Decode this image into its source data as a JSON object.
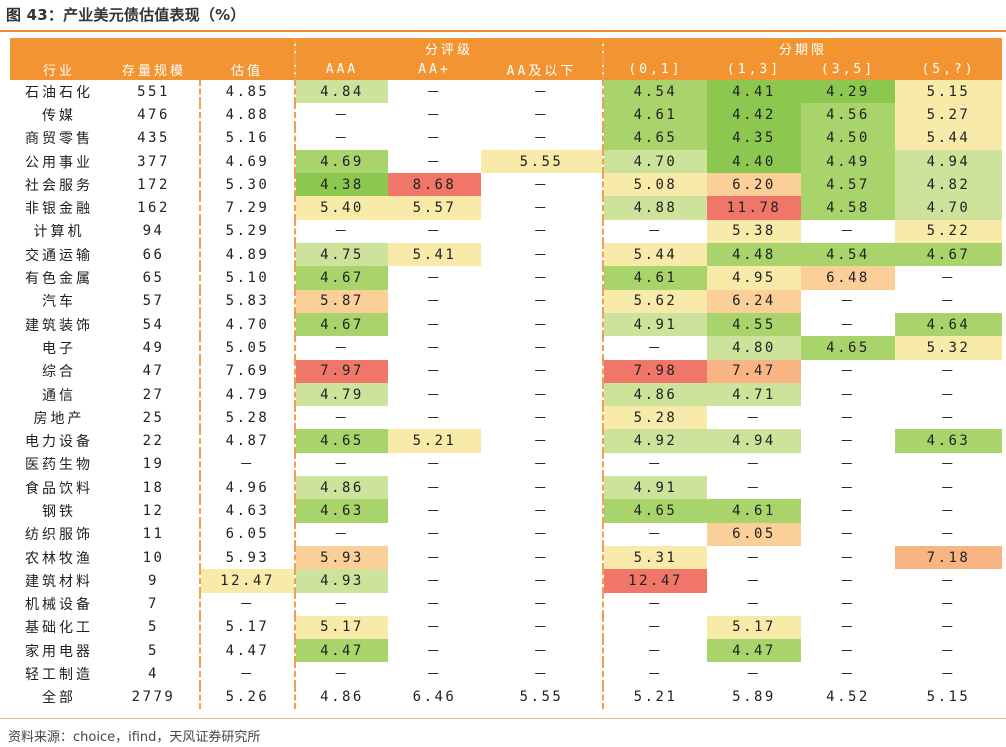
{
  "title": "图 43：产业美元债估值表现（%）",
  "source": "资料来源：choice，ifind，天风证券研究所",
  "header": {
    "group_rating": "分评级",
    "group_term": "分期限",
    "industry": "行业",
    "count": "存量规模",
    "valuation": "估值",
    "ratings": [
      "AAA",
      "AA+",
      "AA及以下"
    ],
    "terms": [
      "(0,1]",
      "(1,3]",
      "(3,5]",
      "(5,?)"
    ]
  },
  "colors": {
    "header_bg": "#f29432",
    "green_dark": "#8cc850",
    "green": "#a9d36b",
    "green_light": "#cde29a",
    "yellow": "#f8ebaa",
    "orange_light": "#fbcf98",
    "orange": "#f8b583",
    "red": "#f0766a"
  },
  "rows": [
    {
      "industry": "石油石化",
      "count": "551",
      "valuation": "4.85",
      "aaa": "4.84",
      "aap": "－",
      "aa": "－",
      "t1": "4.54",
      "t2": "4.41",
      "t3": "4.29",
      "t4": "5.15"
    },
    {
      "industry": "传媒",
      "count": "476",
      "valuation": "4.88",
      "aaa": "－",
      "aap": "－",
      "aa": "－",
      "t1": "4.61",
      "t2": "4.42",
      "t3": "4.56",
      "t4": "5.27"
    },
    {
      "industry": "商贸零售",
      "count": "435",
      "valuation": "5.16",
      "aaa": "－",
      "aap": "－",
      "aa": "－",
      "t1": "4.65",
      "t2": "4.35",
      "t3": "4.50",
      "t4": "5.44"
    },
    {
      "industry": "公用事业",
      "count": "377",
      "valuation": "4.69",
      "aaa": "4.69",
      "aap": "－",
      "aa": "5.55",
      "t1": "4.70",
      "t2": "4.40",
      "t3": "4.49",
      "t4": "4.94"
    },
    {
      "industry": "社会服务",
      "count": "172",
      "valuation": "5.30",
      "aaa": "4.38",
      "aap": "8.68",
      "aa": "－",
      "t1": "5.08",
      "t2": "6.20",
      "t3": "4.57",
      "t4": "4.82"
    },
    {
      "industry": "非银金融",
      "count": "162",
      "valuation": "7.29",
      "aaa": "5.40",
      "aap": "5.57",
      "aa": "－",
      "t1": "4.88",
      "t2": "11.78",
      "t3": "4.58",
      "t4": "4.70"
    },
    {
      "industry": "计算机",
      "count": "94",
      "valuation": "5.29",
      "aaa": "－",
      "aap": "－",
      "aa": "－",
      "t1": "－",
      "t2": "5.38",
      "t3": "－",
      "t4": "5.22"
    },
    {
      "industry": "交通运输",
      "count": "66",
      "valuation": "4.89",
      "aaa": "4.75",
      "aap": "5.41",
      "aa": "－",
      "t1": "5.44",
      "t2": "4.48",
      "t3": "4.54",
      "t4": "4.67"
    },
    {
      "industry": "有色金属",
      "count": "65",
      "valuation": "5.10",
      "aaa": "4.67",
      "aap": "－",
      "aa": "－",
      "t1": "4.61",
      "t2": "4.95",
      "t3": "6.48",
      "t4": "－"
    },
    {
      "industry": "汽车",
      "count": "57",
      "valuation": "5.83",
      "aaa": "5.87",
      "aap": "－",
      "aa": "－",
      "t1": "5.62",
      "t2": "6.24",
      "t3": "－",
      "t4": "－"
    },
    {
      "industry": "建筑装饰",
      "count": "54",
      "valuation": "4.70",
      "aaa": "4.67",
      "aap": "－",
      "aa": "－",
      "t1": "4.91",
      "t2": "4.55",
      "t3": "－",
      "t4": "4.64"
    },
    {
      "industry": "电子",
      "count": "49",
      "valuation": "5.05",
      "aaa": "－",
      "aap": "－",
      "aa": "－",
      "t1": "－",
      "t2": "4.80",
      "t3": "4.65",
      "t4": "5.32"
    },
    {
      "industry": "综合",
      "count": "47",
      "valuation": "7.69",
      "aaa": "7.97",
      "aap": "－",
      "aa": "－",
      "t1": "7.98",
      "t2": "7.47",
      "t3": "－",
      "t4": "－"
    },
    {
      "industry": "通信",
      "count": "27",
      "valuation": "4.79",
      "aaa": "4.79",
      "aap": "－",
      "aa": "－",
      "t1": "4.86",
      "t2": "4.71",
      "t3": "－",
      "t4": "－"
    },
    {
      "industry": "房地产",
      "count": "25",
      "valuation": "5.28",
      "aaa": "－",
      "aap": "－",
      "aa": "－",
      "t1": "5.28",
      "t2": "－",
      "t3": "－",
      "t4": "－"
    },
    {
      "industry": "电力设备",
      "count": "22",
      "valuation": "4.87",
      "aaa": "4.65",
      "aap": "5.21",
      "aa": "－",
      "t1": "4.92",
      "t2": "4.94",
      "t3": "－",
      "t4": "4.63"
    },
    {
      "industry": "医药生物",
      "count": "19",
      "valuation": "－",
      "aaa": "－",
      "aap": "－",
      "aa": "－",
      "t1": "－",
      "t2": "－",
      "t3": "－",
      "t4": "－"
    },
    {
      "industry": "食品饮料",
      "count": "18",
      "valuation": "4.96",
      "aaa": "4.86",
      "aap": "－",
      "aa": "－",
      "t1": "4.91",
      "t2": "－",
      "t3": "－",
      "t4": "－"
    },
    {
      "industry": "钢铁",
      "count": "12",
      "valuation": "4.63",
      "aaa": "4.63",
      "aap": "－",
      "aa": "－",
      "t1": "4.65",
      "t2": "4.61",
      "t3": "－",
      "t4": "－"
    },
    {
      "industry": "纺织服饰",
      "count": "11",
      "valuation": "6.05",
      "aaa": "－",
      "aap": "－",
      "aa": "－",
      "t1": "－",
      "t2": "6.05",
      "t3": "－",
      "t4": "－"
    },
    {
      "industry": "农林牧渔",
      "count": "10",
      "valuation": "5.93",
      "aaa": "5.93",
      "aap": "－",
      "aa": "－",
      "t1": "5.31",
      "t2": "－",
      "t3": "－",
      "t4": "7.18"
    },
    {
      "industry": "建筑材料",
      "count": "9",
      "valuation": "12.47",
      "aaa": "4.93",
      "aap": "－",
      "aa": "－",
      "t1": "12.47",
      "t2": "－",
      "t3": "－",
      "t4": "－"
    },
    {
      "industry": "机械设备",
      "count": "7",
      "valuation": "－",
      "aaa": "－",
      "aap": "－",
      "aa": "－",
      "t1": "－",
      "t2": "－",
      "t3": "－",
      "t4": "－"
    },
    {
      "industry": "基础化工",
      "count": "5",
      "valuation": "5.17",
      "aaa": "5.17",
      "aap": "－",
      "aa": "－",
      "t1": "－",
      "t2": "5.17",
      "t3": "－",
      "t4": "－"
    },
    {
      "industry": "家用电器",
      "count": "5",
      "valuation": "4.47",
      "aaa": "4.47",
      "aap": "－",
      "aa": "－",
      "t1": "－",
      "t2": "4.47",
      "t3": "－",
      "t4": "－"
    },
    {
      "industry": "轻工制造",
      "count": "4",
      "valuation": "－",
      "aaa": "－",
      "aap": "－",
      "aa": "－",
      "t1": "－",
      "t2": "－",
      "t3": "－",
      "t4": "－"
    },
    {
      "industry": "全部",
      "count": "2779",
      "valuation": "5.26",
      "aaa": "4.86",
      "aap": "6.46",
      "aa": "5.55",
      "t1": "5.21",
      "t2": "5.89",
      "t3": "4.52",
      "t4": "5.15"
    }
  ]
}
